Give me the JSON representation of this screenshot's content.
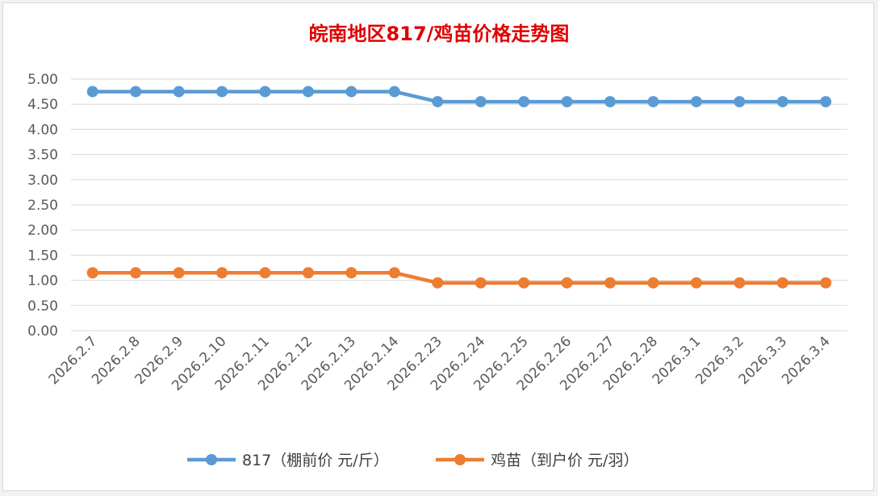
{
  "chart_data": {
    "type": "line",
    "title": "皖南地区817/鸡苗价格走势图",
    "title_color": "#e00000",
    "categories": [
      "2026.2.7",
      "2026.2.8",
      "2026.2.9",
      "2026.2.10",
      "2026.2.11",
      "2026.2.12",
      "2026.2.13",
      "2026.2.14",
      "2026.2.23",
      "2026.2.24",
      "2026.2.25",
      "2026.2.26",
      "2026.2.27",
      "2026.2.28",
      "2026.3.1",
      "2026.3.2",
      "2026.3.3",
      "2026.3.4"
    ],
    "yticks": [
      "0.00",
      "0.50",
      "1.00",
      "1.50",
      "2.00",
      "2.50",
      "3.00",
      "3.50",
      "4.00",
      "4.50",
      "5.00"
    ],
    "ylim": [
      0,
      5
    ],
    "grid": true,
    "legend_position": "bottom",
    "series": [
      {
        "name": "817（棚前价 元/斤）",
        "color": "#5b9bd5",
        "values": [
          4.75,
          4.75,
          4.75,
          4.75,
          4.75,
          4.75,
          4.75,
          4.75,
          4.55,
          4.55,
          4.55,
          4.55,
          4.55,
          4.55,
          4.55,
          4.55,
          4.55,
          4.55
        ]
      },
      {
        "name": "鸡苗（到户价 元/羽）",
        "color": "#ed7d31",
        "values": [
          1.15,
          1.15,
          1.15,
          1.15,
          1.15,
          1.15,
          1.15,
          1.15,
          0.95,
          0.95,
          0.95,
          0.95,
          0.95,
          0.95,
          0.95,
          0.95,
          0.95,
          0.95
        ]
      }
    ]
  }
}
